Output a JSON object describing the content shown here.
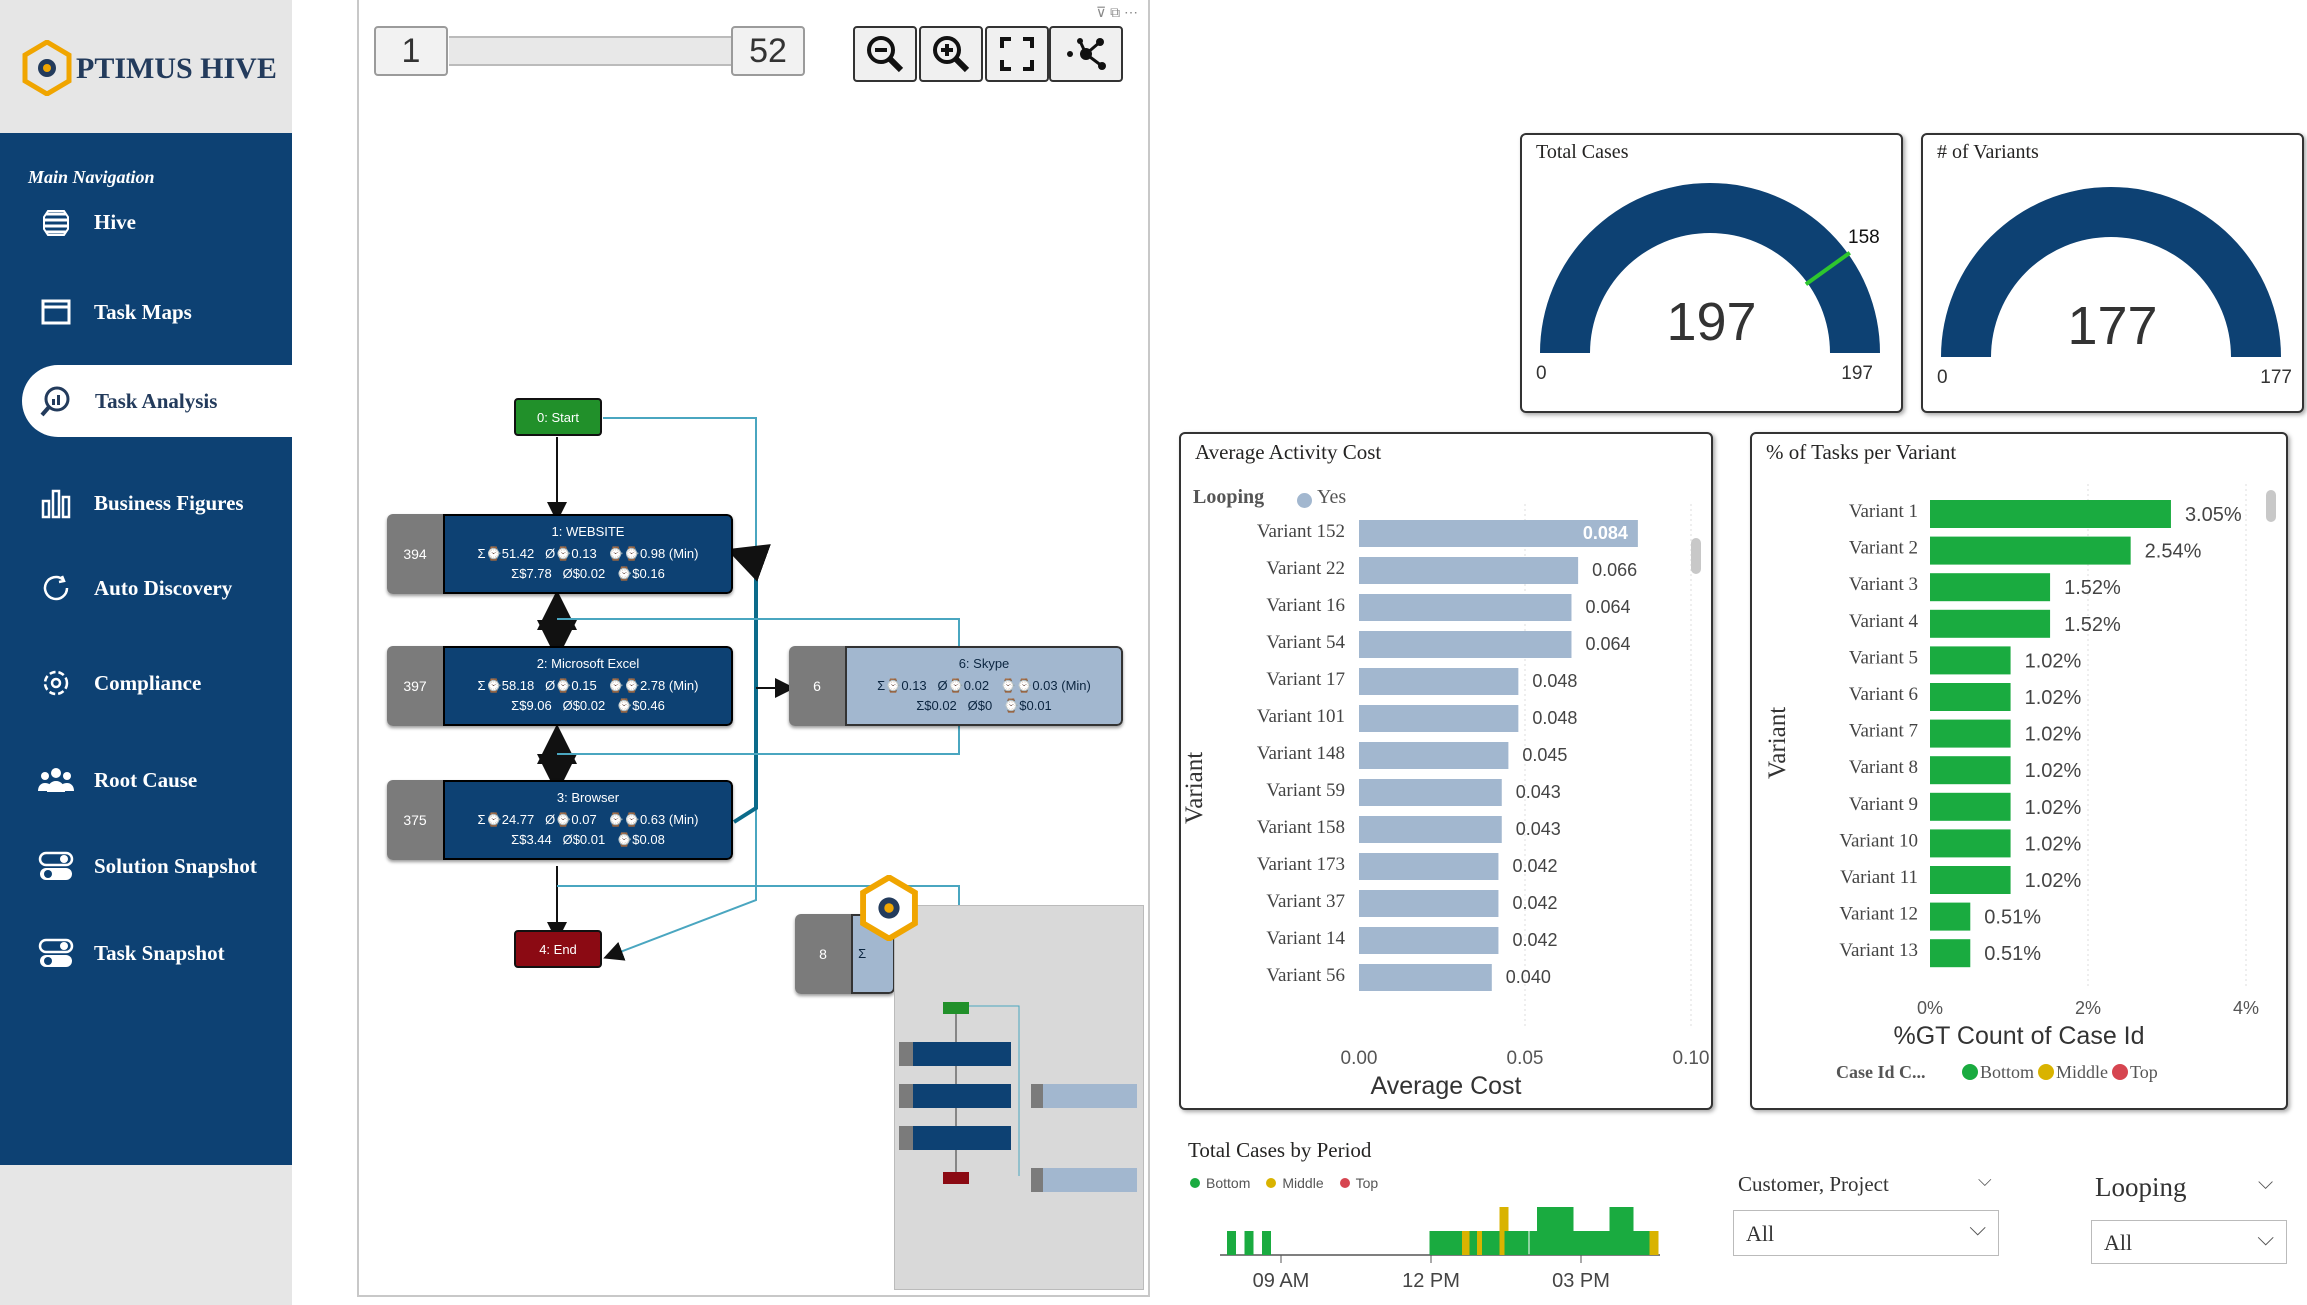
{
  "brand": {
    "name": "PTIMUS HIVE"
  },
  "nav": {
    "heading": "Main Navigation",
    "items": [
      {
        "label": "Hive",
        "icon": "hive-icon"
      },
      {
        "label": "Task Maps",
        "icon": "window-icon"
      },
      {
        "label": "Task Analysis",
        "icon": "magnifier-chart-icon",
        "active": true
      },
      {
        "label": "Business Figures",
        "icon": "bar-chart-icon"
      },
      {
        "label": "Auto Discovery",
        "icon": "refresh-icon"
      },
      {
        "label": "Compliance",
        "icon": "gear-cycle-icon"
      },
      {
        "label": "Root Cause",
        "icon": "people-icon"
      },
      {
        "label": "Solution Snapshot",
        "icon": "toggle-stack-icon"
      },
      {
        "label": "Task Snapshot",
        "icon": "toggle-stack-icon"
      }
    ]
  },
  "process_map": {
    "range_min": "1",
    "range_max": "52",
    "zoom_buttons": [
      "zoom-out-icon",
      "zoom-in-icon",
      "fit-screen-icon",
      "graph-layout-icon"
    ],
    "start_label": "0: Start",
    "end_label": "4: End",
    "nodes": [
      {
        "count": "394",
        "title": "1: WEBSITE",
        "l1a": "Σ⌚51.42",
        "l1b": "Ø⌚0.13",
        "l1c": "⌚⌚0.98 (Min)",
        "l2a": "Σ$7.78",
        "l2b": "Ø$0.02",
        "l2c": "⌚$0.16"
      },
      {
        "count": "397",
        "title": "2: Microsoft Excel",
        "l1a": "Σ⌚58.18",
        "l1b": "Ø⌚0.15",
        "l1c": "⌚⌚2.78 (Min)",
        "l2a": "Σ$9.06",
        "l2b": "Ø$0.02",
        "l2c": "⌚$0.46"
      },
      {
        "count": "375",
        "title": "3: Browser",
        "l1a": "Σ⌚24.77",
        "l1b": "Ø⌚0.07",
        "l1c": "⌚⌚0.63 (Min)",
        "l2a": "Σ$3.44",
        "l2b": "Ø$0.01",
        "l2c": "⌚$0.08"
      },
      {
        "count": "6",
        "title": "6: Skype",
        "l1a": "Σ⌚0.13",
        "l1b": "Ø⌚0.02",
        "l1c": "⌚⌚0.03 (Min)",
        "l2a": "Σ$0.02",
        "l2b": "Ø$0",
        "l2c": "⌚$0.01"
      },
      {
        "count": "8",
        "title": "",
        "l1a": "Σ",
        "l1b": "",
        "l1c": "",
        "l2a": "",
        "l2b": "",
        "l2c": ""
      }
    ]
  },
  "total_cases": {
    "title": "Total Cases",
    "value": "197",
    "min": "0",
    "max": "197",
    "target": "158",
    "target_value": 158,
    "range_max": 197,
    "fill_fraction": 1.0
  },
  "variants": {
    "title": "# of Variants",
    "value": "177",
    "min": "0",
    "max": "177",
    "fill_fraction": 1.0
  },
  "avg_cost": {
    "title": "Average Activity Cost",
    "legend_title": "Looping",
    "legend_item": "Yes",
    "ylabel": "Variant",
    "xlabel": "Average Cost",
    "xticks": [
      "0.00",
      "0.05",
      "0.10"
    ],
    "bar_color": "#a2b7cf"
  },
  "pct_tasks": {
    "title": "% of Tasks per Variant",
    "ylabel": "Variant",
    "xlabel": "%GT Count of Case Id",
    "xticks": [
      "0%",
      "2%",
      "4%"
    ],
    "legend_title": "Case Id C...",
    "legend": [
      {
        "name": "Bottom",
        "color": "#1aab40"
      },
      {
        "name": "Middle",
        "color": "#d9b300"
      },
      {
        "name": "Top",
        "color": "#d64550"
      }
    ]
  },
  "period": {
    "title": "Total Cases by Period",
    "legend": [
      {
        "name": "Bottom",
        "color": "#1aab40"
      },
      {
        "name": "Middle",
        "color": "#d9b300"
      },
      {
        "name": "Top",
        "color": "#d64550"
      }
    ],
    "xticks": [
      "09 AM",
      "12 PM",
      "03 PM"
    ]
  },
  "filters": {
    "customer_label": "Customer, Project",
    "customer_value": "All",
    "looping_label": "Looping",
    "looping_value": "All"
  },
  "chart_data": [
    {
      "type": "bar",
      "title": "Average Activity Cost",
      "orientation": "horizontal",
      "categories": [
        "Variant 152",
        "Variant 22",
        "Variant 16",
        "Variant 54",
        "Variant 17",
        "Variant 101",
        "Variant 148",
        "Variant 59",
        "Variant 158",
        "Variant 173",
        "Variant 37",
        "Variant 14",
        "Variant 56"
      ],
      "values": [
        0.084,
        0.066,
        0.064,
        0.064,
        0.048,
        0.048,
        0.045,
        0.043,
        0.043,
        0.042,
        0.042,
        0.042,
        0.04
      ],
      "value_labels": [
        "0.084",
        "0.066",
        "0.064",
        "0.064",
        "0.048",
        "0.048",
        "0.045",
        "0.043",
        "0.043",
        "0.042",
        "0.042",
        "0.042",
        "0.040"
      ],
      "xlabel": "Average Cost",
      "ylabel": "Variant",
      "xlim": [
        0,
        0.1
      ],
      "legend": "top-left"
    },
    {
      "type": "bar",
      "title": "% of Tasks per Variant",
      "orientation": "horizontal",
      "categories": [
        "Variant 1",
        "Variant 2",
        "Variant 3",
        "Variant 4",
        "Variant 5",
        "Variant 6",
        "Variant 7",
        "Variant 8",
        "Variant 9",
        "Variant 10",
        "Variant 11",
        "Variant 12",
        "Variant 13"
      ],
      "values": [
        3.05,
        2.54,
        1.52,
        1.52,
        1.02,
        1.02,
        1.02,
        1.02,
        1.02,
        1.02,
        1.02,
        0.51,
        0.51
      ],
      "value_labels": [
        "3.05%",
        "2.54%",
        "1.52%",
        "1.52%",
        "1.02%",
        "1.02%",
        "1.02%",
        "1.02%",
        "1.02%",
        "1.02%",
        "1.02%",
        "0.51%",
        "0.51%"
      ],
      "xlabel": "%GT Count of Case Id",
      "ylabel": "Variant",
      "xlim": [
        0,
        4
      ],
      "legend": "bottom"
    },
    {
      "type": "bar",
      "title": "Total Cases by Period",
      "x": [
        8.0,
        8.35,
        8.7,
        12.05,
        12.15,
        12.25,
        12.4,
        12.55,
        12.7,
        12.85,
        13.0,
        13.1,
        13.2,
        13.3,
        13.45,
        13.55,
        13.65,
        13.75,
        13.85,
        14.05,
        14.2,
        14.35,
        14.45,
        14.55,
        14.65,
        14.75,
        14.85,
        15.0,
        15.15,
        15.25,
        15.4,
        15.55,
        15.65,
        15.75,
        15.85,
        15.95,
        16.05,
        16.15,
        16.3,
        16.45
      ],
      "series": [
        {
          "name": "Bottom",
          "values": [
            1,
            1,
            1,
            1,
            1,
            1,
            1,
            1,
            1,
            1,
            1,
            1,
            1,
            1,
            2,
            1,
            1,
            1,
            1,
            1,
            2,
            2,
            2,
            2,
            2,
            2,
            1,
            1,
            1,
            1,
            1,
            1,
            2,
            2,
            2,
            2,
            1,
            1,
            1,
            1
          ]
        }
      ],
      "colors": [
        "#1aab40",
        "#1aab40",
        "#1aab40",
        "#1aab40",
        "#1aab40",
        "#1aab40",
        "#1aab40",
        "#1aab40",
        "#d9b300",
        "#1aab40",
        "#d9b300",
        "#1aab40",
        "#1aab40",
        "#1aab40",
        "#d9b300",
        "#1aab40",
        "#1aab40",
        "#1aab40",
        "#1aab40",
        "#1aab40",
        "#1aab40",
        "#1aab40",
        "#1aab40",
        "#1aab40",
        "#1aab40",
        "#1aab40",
        "#1aab40",
        "#1aab40",
        "#1aab40",
        "#1aab40",
        "#1aab40",
        "#1aab40",
        "#1aab40",
        "#1aab40",
        "#1aab40",
        "#1aab40",
        "#1aab40",
        "#1aab40",
        "#1aab40",
        "#d9b300"
      ],
      "xticks": [
        "09 AM",
        "12 PM",
        "03 PM"
      ],
      "legend": "top-left"
    }
  ]
}
